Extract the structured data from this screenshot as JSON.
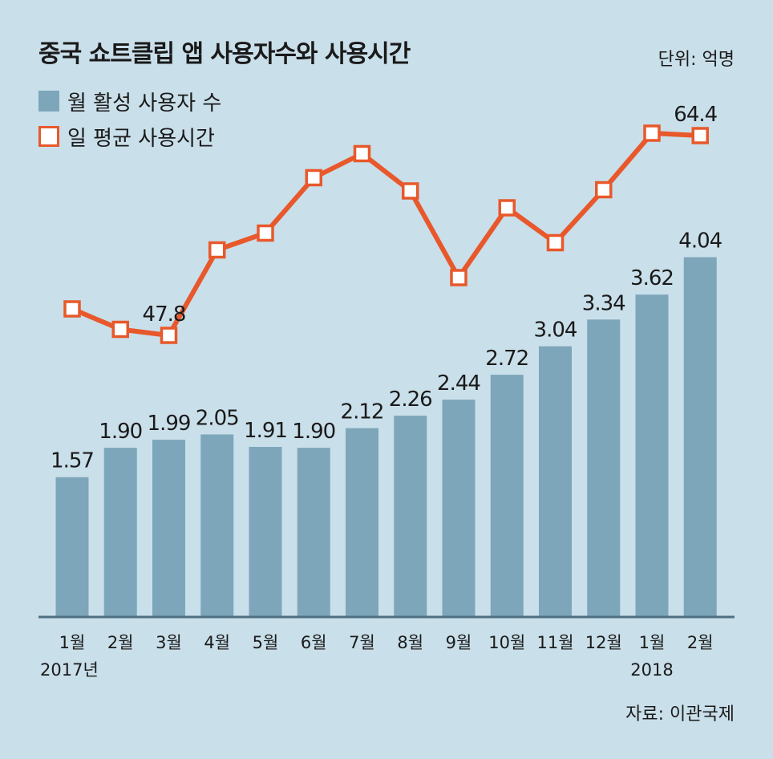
{
  "chart_data": {
    "type": "bar+line",
    "title": "중국 쇼트클립 앱 사용자수와 사용시간",
    "unit": "단위: 억명",
    "source": "자료: 이관국제",
    "categories": [
      "1월",
      "2월",
      "3월",
      "4월",
      "5월",
      "6월",
      "7월",
      "8월",
      "9월",
      "10월",
      "11월",
      "12월",
      "1월",
      "2월"
    ],
    "year_labels": [
      {
        "index": 0,
        "label": "2017년"
      },
      {
        "index": 12,
        "label": "2018"
      }
    ],
    "series": [
      {
        "name": "월 활성 사용자 수",
        "type": "bar",
        "color": "#7ea6ba",
        "values": [
          1.57,
          1.9,
          1.99,
          2.05,
          1.91,
          1.9,
          2.12,
          2.26,
          2.44,
          2.72,
          3.04,
          3.34,
          3.62,
          4.04
        ],
        "labels": [
          "1.57",
          "1.90",
          "1.99",
          "2.05",
          "1.91",
          "1.90",
          "2.12",
          "2.26",
          "2.44",
          "2.72",
          "3.04",
          "3.34",
          "3.62",
          "4.04"
        ]
      },
      {
        "name": "일 평균 사용시간",
        "type": "line",
        "color": "#e8582b",
        "values": [
          50.0,
          48.3,
          47.8,
          54.9,
          56.3,
          60.9,
          62.9,
          59.8,
          52.6,
          58.4,
          55.5,
          59.9,
          64.6,
          64.4
        ],
        "labels": [
          "",
          "",
          "47.8",
          "",
          "",
          "",
          "",
          "",
          "",
          "",
          "",
          "",
          "",
          "64.4"
        ]
      }
    ]
  }
}
